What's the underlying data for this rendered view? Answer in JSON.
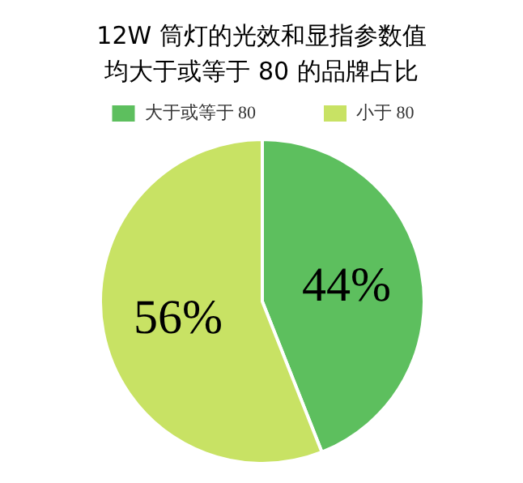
{
  "chart_data": {
    "type": "pie",
    "title": "12W 筒灯的光效和显指参数值均大于或等于 80 的品牌占比",
    "categories": [
      "大于或等于 80",
      "小于 80"
    ],
    "values": [
      44,
      56
    ],
    "value_labels": [
      "44%",
      "56%"
    ],
    "colors": [
      "#5dbf5e",
      "#c8e264"
    ],
    "legend": "top"
  }
}
